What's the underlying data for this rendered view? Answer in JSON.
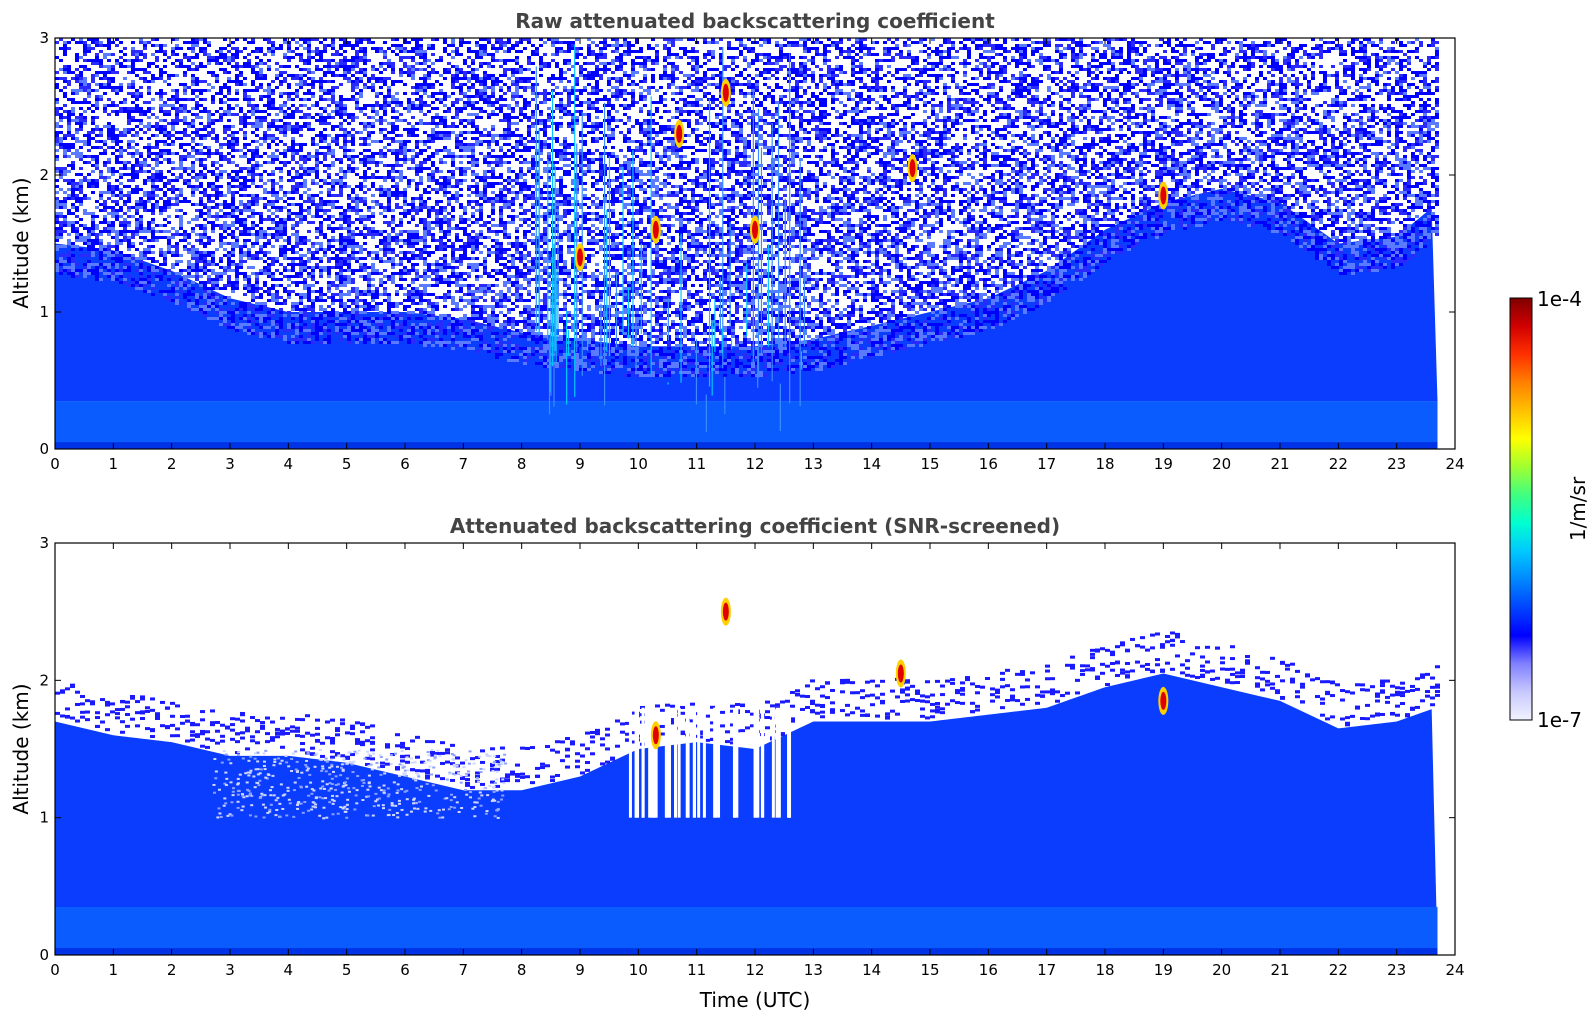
{
  "chart_data": [
    {
      "type": "heatmap",
      "title": "Raw attenuated backscattering coefficient",
      "xlabel": "",
      "ylabel": "Altitude (km)",
      "xlim": [
        0,
        24
      ],
      "ylim": [
        0,
        3
      ],
      "x_ticks": [
        "0",
        "1",
        "2",
        "3",
        "4",
        "5",
        "6",
        "7",
        "8",
        "9",
        "10",
        "11",
        "12",
        "13",
        "14",
        "15",
        "16",
        "17",
        "18",
        "19",
        "20",
        "21",
        "22",
        "23",
        "24"
      ],
      "y_ticks": [
        "0",
        "1",
        "2",
        "3"
      ],
      "data_end_hour": 23.7,
      "noise_top_km": [
        1.5,
        1.45,
        1.3,
        1.1,
        1.0,
        1.0,
        1.0,
        0.95,
        0.85,
        0.8,
        0.75,
        0.75,
        0.75,
        0.8,
        0.9,
        1.0,
        1.1,
        1.3,
        1.6,
        1.8,
        1.9,
        1.8,
        1.5,
        1.55,
        1.9
      ],
      "strong_returns": [
        {
          "hour": 9.0,
          "alt_km": 1.4
        },
        {
          "hour": 10.3,
          "alt_km": 1.6
        },
        {
          "hour": 10.7,
          "alt_km": 2.3
        },
        {
          "hour": 11.5,
          "alt_km": 2.6
        },
        {
          "hour": 12.0,
          "alt_km": 1.6
        },
        {
          "hour": 14.7,
          "alt_km": 2.05
        },
        {
          "hour": 19.0,
          "alt_km": 1.85
        }
      ]
    },
    {
      "type": "heatmap",
      "title": "Attenuated backscattering coefficient (SNR-screened)",
      "xlabel": "Time (UTC)",
      "ylabel": "Altitude (km)",
      "xlim": [
        0,
        24
      ],
      "ylim": [
        0,
        3
      ],
      "x_ticks": [
        "0",
        "1",
        "2",
        "3",
        "4",
        "5",
        "6",
        "7",
        "8",
        "9",
        "10",
        "11",
        "12",
        "13",
        "14",
        "15",
        "16",
        "17",
        "18",
        "19",
        "20",
        "21",
        "22",
        "23",
        "24"
      ],
      "y_ticks": [
        "0",
        "1",
        "2",
        "3"
      ],
      "data_end_hour": 23.7,
      "layer_top_km": [
        1.7,
        1.6,
        1.55,
        1.45,
        1.45,
        1.4,
        1.3,
        1.2,
        1.2,
        1.3,
        1.5,
        1.55,
        1.5,
        1.7,
        1.7,
        1.7,
        1.75,
        1.8,
        1.95,
        2.05,
        1.95,
        1.85,
        1.65,
        1.7,
        1.85
      ],
      "strong_returns": [
        {
          "hour": 10.3,
          "alt_km": 1.6
        },
        {
          "hour": 11.5,
          "alt_km": 2.5
        },
        {
          "hour": 14.5,
          "alt_km": 2.05
        },
        {
          "hour": 19.0,
          "alt_km": 1.85
        }
      ]
    }
  ],
  "colorbar": {
    "label": "1/m/sr",
    "max_label": "1e-4",
    "min_label": "1e-7",
    "colors": [
      "#f2f2ff",
      "#c8c8ff",
      "#8080ff",
      "#0000ff",
      "#0044ff",
      "#0088ff",
      "#00c8ff",
      "#00ffd0",
      "#40ff80",
      "#a0ff30",
      "#ffff00",
      "#ffc000",
      "#ff8000",
      "#ff3000",
      "#d00000",
      "#800000"
    ]
  }
}
